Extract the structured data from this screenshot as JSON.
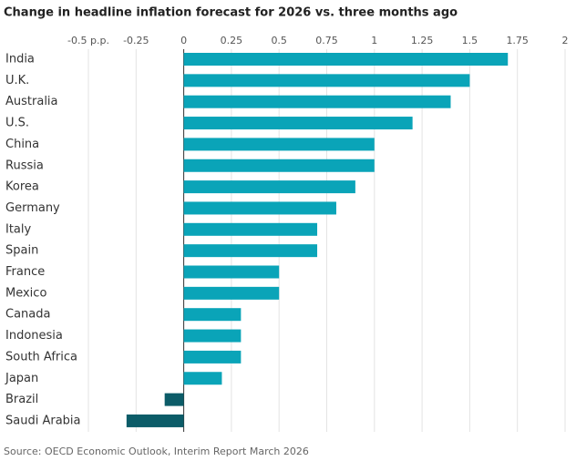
{
  "chart_data": {
    "type": "hbar",
    "title": "Change in headline inflation forecast for 2026 vs. three months ago",
    "source": "Source: OECD Economic Outlook, Interim Report March 2026",
    "categories": [
      "India",
      "U.K.",
      "Australia",
      "U.S.",
      "China",
      "Russia",
      "Korea",
      "Germany",
      "Italy",
      "Spain",
      "France",
      "Mexico",
      "Canada",
      "Indonesia",
      "South Africa",
      "Japan",
      "Brazil",
      "Saudi Arabia"
    ],
    "values": [
      1.7,
      1.5,
      1.4,
      1.2,
      1.0,
      1.0,
      0.9,
      0.8,
      0.7,
      0.7,
      0.5,
      0.5,
      0.3,
      0.3,
      0.3,
      0.2,
      -0.1,
      -0.3
    ],
    "color": "#0aa4b8",
    "negative_color": "#0c5c68",
    "xlim": [
      -0.5,
      2
    ],
    "xticks": [
      {
        "value": -0.5,
        "label": "-0.5 p.p."
      },
      -0.25,
      0,
      0.25,
      0.5,
      0.75,
      1,
      1.25,
      1.5,
      1.75,
      2
    ],
    "grid": true
  }
}
